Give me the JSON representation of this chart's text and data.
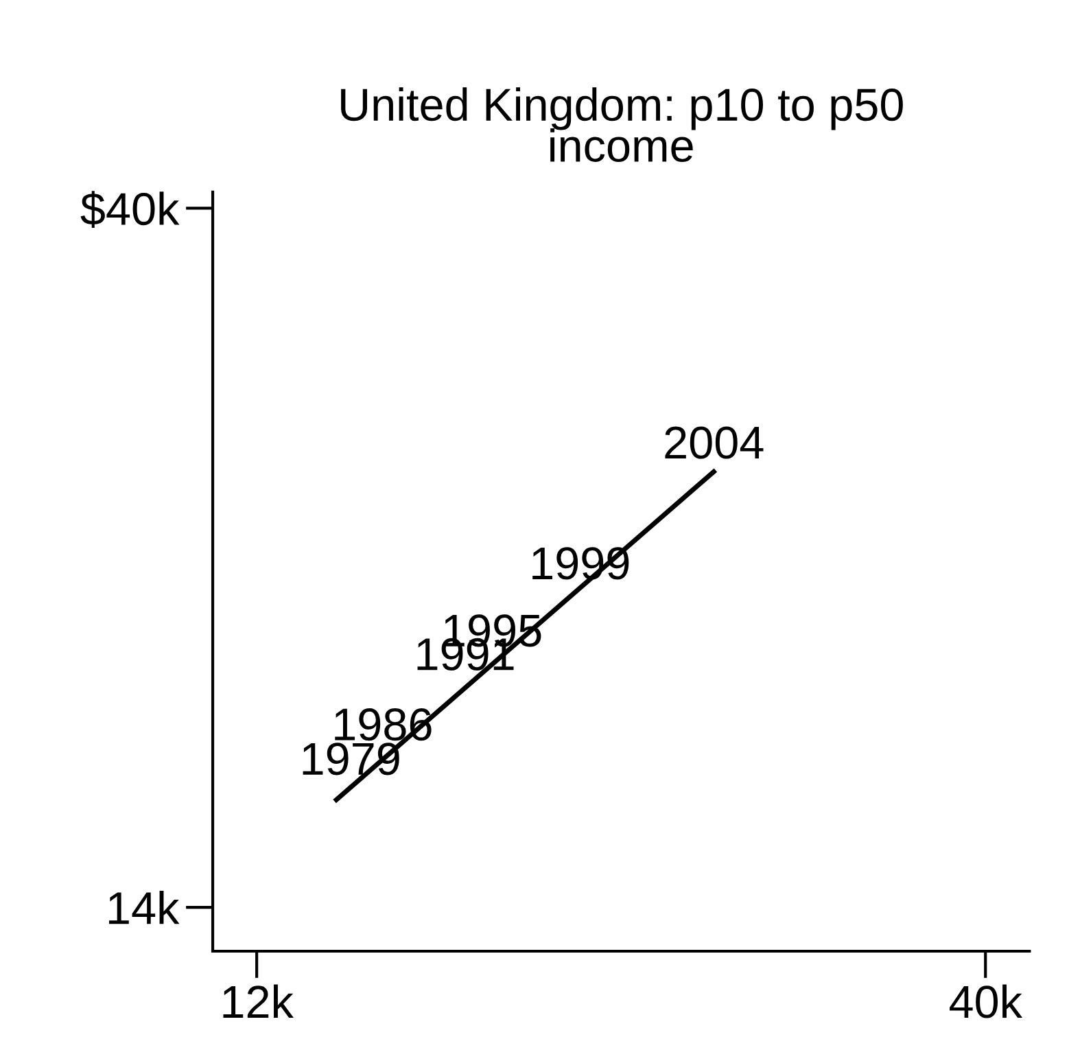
{
  "chart_data": {
    "type": "line",
    "title": "United Kingdom: p10 to p50\nincome",
    "series": [
      {
        "color": "#000000",
        "x": [
          15.06,
          29.56
        ],
        "values": [
          18.0,
          30.2
        ]
      }
    ],
    "annotations": [
      {
        "text": "1979",
        "x": 15.6,
        "y": 18.44
      },
      {
        "text": "1986",
        "x": 16.83,
        "y": 19.72
      },
      {
        "text": "1991",
        "x": 20.0,
        "y": 22.33
      },
      {
        "text": "1995",
        "x": 21.04,
        "y": 23.21
      },
      {
        "text": "1999",
        "x": 24.42,
        "y": 25.71
      },
      {
        "text": "2004",
        "x": 29.56,
        "y": 30.2
      }
    ],
    "grid": false,
    "legend": false,
    "marker": "none",
    "xlim": [
      10.31,
      41.69
    ],
    "ylim": [
      12.37,
      40.6
    ],
    "xticks": [
      {
        "value": 12,
        "label": "12k"
      },
      {
        "value": 40,
        "label": "40k"
      }
    ],
    "yticks": [
      {
        "value": 14,
        "label": "14k"
      },
      {
        "value": 40,
        "label": "$40k"
      }
    ],
    "line_style": "solid"
  }
}
